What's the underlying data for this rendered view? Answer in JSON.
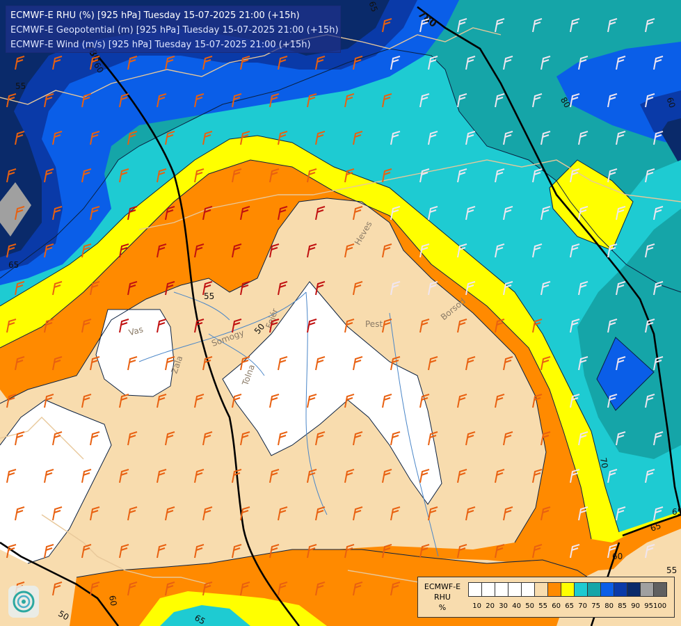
{
  "header": {
    "line1": "ECMWF-E RHU (%) [925 hPa] Tuesday 15-07-2025 21:00 (+15h)",
    "line2": "ECMWF-E Geopotential (m) [925 hPa] Tuesday 15-07-2025 21:00 (+15h)",
    "line3": "ECMWF-E Wind (m/s) [925 hPa] Tuesday 15-07-2025 21:00 (+15h)"
  },
  "legend": {
    "title_model": "ECMWF-E",
    "title_param": "RHU",
    "title_unit": "%",
    "levels": [
      {
        "label": "10",
        "color": "#ffffff"
      },
      {
        "label": "20",
        "color": "#ffffff"
      },
      {
        "label": "30",
        "color": "#ffffff"
      },
      {
        "label": "40",
        "color": "#ffffff"
      },
      {
        "label": "50",
        "color": "#ffffff"
      },
      {
        "label": "55",
        "color": "#f8dcae"
      },
      {
        "label": "60",
        "color": "#ff8a00"
      },
      {
        "label": "65",
        "color": "#ffff00"
      },
      {
        "label": "70",
        "color": "#1ecbd2"
      },
      {
        "label": "75",
        "color": "#15a5a8"
      },
      {
        "label": "80",
        "color": "#0a5ee8"
      },
      {
        "label": "85",
        "color": "#0a3aa8"
      },
      {
        "label": "90",
        "color": "#0a2a6a"
      },
      {
        "label": "95",
        "color": "#a0a0a0"
      },
      {
        "label": "100",
        "color": "#606060"
      }
    ]
  },
  "contours": {
    "geopotential": [
      "780",
      "780"
    ],
    "rhu": [
      "55",
      "50",
      "65",
      "70",
      "65",
      "60",
      "60",
      "65",
      "55",
      "50",
      "60",
      "65",
      "65",
      "60",
      "80",
      "55"
    ]
  },
  "regions": [
    "Vas",
    "Zala",
    "Somogy",
    "Fejér",
    "Tolna",
    "Pest",
    "Heves",
    "Borsod",
    "Pest"
  ],
  "colors": {
    "white": "#ffffff",
    "beige": "#f8dcae",
    "orange": "#ff8a00",
    "yellow": "#ffff00",
    "cyan": "#1ecbd2",
    "teal": "#15a5a8",
    "blue": "#0a5ee8",
    "darkblue": "#0a3aa8",
    "navy": "#0a2a6a",
    "gray": "#a0a0a0"
  }
}
